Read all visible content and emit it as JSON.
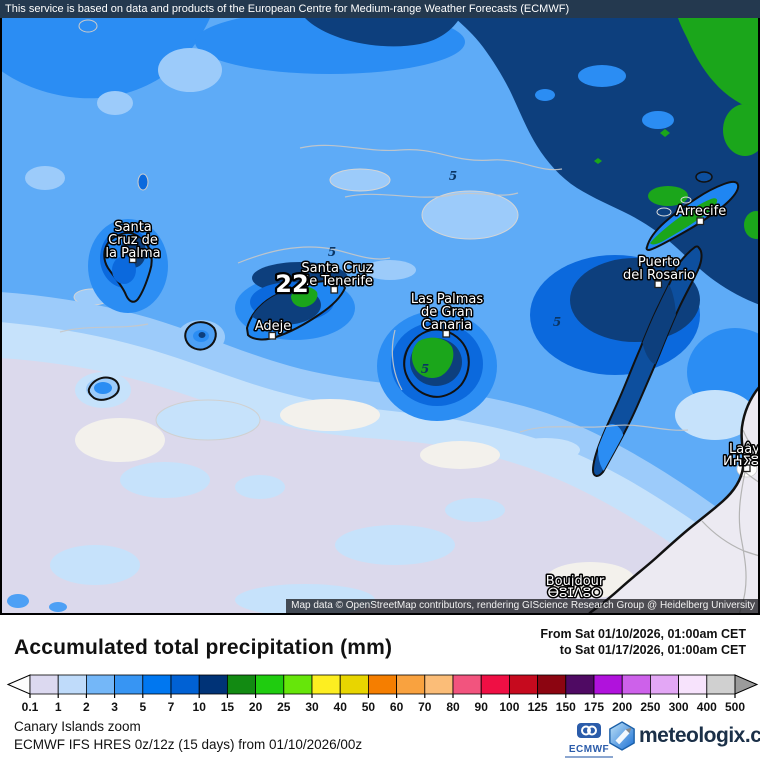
{
  "top_banner": {
    "text": "This service is based on data and products of the European Centre for Medium-range Weather Forecasts (ECMWF)",
    "bg_color": "#24394f"
  },
  "map": {
    "attribution": "Map data © OpenStreetMap contributors, rendering GIScience Research Group @ Heidelberg University",
    "peak_value": "22",
    "contour_label": "5",
    "cities": {
      "la_palma": {
        "lines": [
          "Santa",
          "Cruz de",
          "la Palma"
        ]
      },
      "tenerife": {
        "lines": [
          "Santa Cruz",
          "de Tenerife"
        ]
      },
      "adeje": {
        "label": "Adeje"
      },
      "las_palmas": {
        "lines": [
          "Las Palmas",
          "de Gran",
          "Canaria"
        ]
      },
      "arrecife": {
        "label": "Arrecife"
      },
      "puerto_del_rosario": {
        "lines": [
          "Puerto",
          "del Rosario"
        ]
      },
      "laayoune": {
        "lines": [
          "Laâyou",
          "ⵍⵄⵢⵓⵏ"
        ]
      },
      "boujdour": {
        "lines": [
          "Boujdour",
          "ⴱⵓⵊⴷⵓⵔ"
        ]
      }
    }
  },
  "legend": {
    "title": "Accumulated total precipitation (mm)",
    "period_line1": "From Sat 01/10/2026, 01:00am CET",
    "period_line2": "to Sat 01/17/2026, 01:00am CET",
    "ticks": [
      "0.1",
      "1",
      "2",
      "3",
      "5",
      "7",
      "10",
      "15",
      "20",
      "25",
      "30",
      "40",
      "50",
      "60",
      "70",
      "80",
      "90",
      "100",
      "125",
      "150",
      "175",
      "200",
      "250",
      "300",
      "400",
      "500"
    ],
    "colors": [
      "#dcd9f0",
      "#bfdbfa",
      "#74b7f8",
      "#3795f3",
      "#0077f0",
      "#0061d4",
      "#003377",
      "#128a12",
      "#1fcc0f",
      "#66e60a",
      "#fdee21",
      "#e8d500",
      "#f57e00",
      "#f9a23f",
      "#fbbd78",
      "#f2547e",
      "#ef0f44",
      "#c60a1e",
      "#8c0511",
      "#4f0a63",
      "#b012dc",
      "#cd61ea",
      "#e3a7f5",
      "#f7e3fc",
      "#d0d0d0"
    ],
    "left_arrow_color": "#fdfdfd",
    "right_arrow_color": "#9b9b9b"
  },
  "footer": {
    "region": "Canary Islands zoom",
    "model": "ECMWF IFS HRES 0z/12z (15 days) from 01/10/2026/00z",
    "ecmwf": "ECMWF",
    "brand": "meteologix.com"
  }
}
